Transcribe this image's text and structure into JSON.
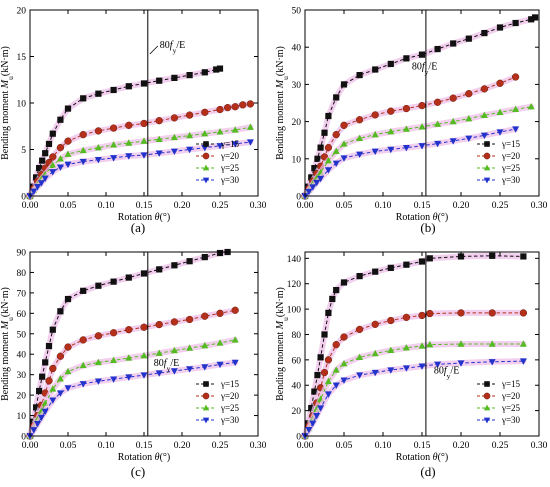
{
  "figure": {
    "ylabel_text": "Bending moment M",
    "ylabel_sub": "u",
    "ylabel_unit": "(kN·m)",
    "xlabel_text": "Rotation ",
    "xlabel_sym": "θ",
    "xlabel_unit": "(°)",
    "annotation_prefix": "80",
    "annotation_f": "f",
    "annotation_sub": "y",
    "annotation_suffix": "/E",
    "legend_prefix": "γ=",
    "colors": {
      "g15": "#111111",
      "g20": "#b5301a",
      "g25": "#55bb22",
      "g30": "#2233cc",
      "band": "#eebfe8"
    },
    "markers": {
      "g15": "square",
      "g20": "circle",
      "g25": "triangle-up",
      "g30": "triangle-down"
    }
  },
  "chart_data": [
    {
      "type": "line",
      "panel_label": "(a)",
      "xlim": [
        0,
        0.3
      ],
      "ylim": [
        0,
        20
      ],
      "xticks": [
        "0.00",
        "0.05",
        "0.10",
        "0.15",
        "0.20",
        "0.25",
        "0.30"
      ],
      "yticks": [
        "0",
        "5",
        "10",
        "15",
        "20"
      ],
      "vline_x": 0.155,
      "annotation_pos": "top, right of vertical line",
      "legend_position": "lower-right",
      "series": [
        {
          "name": "15",
          "key": "g15",
          "x": [
            0,
            0.004,
            0.008,
            0.012,
            0.016,
            0.02,
            0.025,
            0.03,
            0.04,
            0.05,
            0.07,
            0.09,
            0.11,
            0.13,
            0.15,
            0.17,
            0.19,
            0.21,
            0.23,
            0.245,
            0.25
          ],
          "y": [
            0,
            1.0,
            2.0,
            3.0,
            3.8,
            4.6,
            5.6,
            6.7,
            8.2,
            9.4,
            10.5,
            11.0,
            11.4,
            11.8,
            12.1,
            12.4,
            12.7,
            13.0,
            13.3,
            13.6,
            13.7
          ]
        },
        {
          "name": "20",
          "key": "g20",
          "x": [
            0,
            0.005,
            0.01,
            0.015,
            0.02,
            0.025,
            0.03,
            0.04,
            0.05,
            0.07,
            0.09,
            0.11,
            0.13,
            0.15,
            0.17,
            0.19,
            0.21,
            0.23,
            0.25,
            0.26,
            0.27,
            0.28,
            0.29
          ],
          "y": [
            0,
            0.8,
            1.6,
            2.3,
            3.0,
            3.6,
            4.2,
            5.2,
            5.9,
            6.6,
            7.0,
            7.3,
            7.6,
            7.8,
            8.1,
            8.4,
            8.7,
            9.0,
            9.3,
            9.5,
            9.6,
            9.8,
            9.9
          ]
        },
        {
          "name": "25",
          "key": "g25",
          "x": [
            0,
            0.005,
            0.01,
            0.015,
            0.02,
            0.03,
            0.04,
            0.05,
            0.07,
            0.09,
            0.11,
            0.13,
            0.15,
            0.17,
            0.19,
            0.21,
            0.23,
            0.25,
            0.27,
            0.29
          ],
          "y": [
            0,
            0.6,
            1.2,
            1.8,
            2.3,
            3.3,
            4.0,
            4.5,
            4.9,
            5.2,
            5.5,
            5.7,
            5.9,
            6.1,
            6.3,
            6.5,
            6.7,
            6.9,
            7.1,
            7.4
          ]
        },
        {
          "name": "30",
          "key": "g30",
          "x": [
            0,
            0.005,
            0.01,
            0.015,
            0.02,
            0.03,
            0.04,
            0.05,
            0.07,
            0.09,
            0.11,
            0.13,
            0.15,
            0.17,
            0.19,
            0.21,
            0.23,
            0.25,
            0.27,
            0.29
          ],
          "y": [
            0,
            0.5,
            1.0,
            1.4,
            1.9,
            2.6,
            3.1,
            3.4,
            3.7,
            3.9,
            4.1,
            4.3,
            4.4,
            4.6,
            4.8,
            5.0,
            5.2,
            5.4,
            5.6,
            5.8
          ]
        }
      ]
    },
    {
      "type": "line",
      "panel_label": "(b)",
      "xlim": [
        0,
        0.3
      ],
      "ylim": [
        0,
        50
      ],
      "xticks": [
        "0.00",
        "0.05",
        "0.10",
        "0.15",
        "0.20",
        "0.25",
        "0.30"
      ],
      "yticks": [
        "0",
        "10",
        "20",
        "30",
        "40",
        "50"
      ],
      "vline_x": 0.155,
      "annotation_pos": "middle, left of vertical line",
      "legend_position": "lower-right",
      "series": [
        {
          "name": "15",
          "key": "g15",
          "x": [
            0,
            0.004,
            0.008,
            0.012,
            0.016,
            0.02,
            0.025,
            0.03,
            0.04,
            0.05,
            0.07,
            0.09,
            0.11,
            0.13,
            0.15,
            0.17,
            0.19,
            0.21,
            0.23,
            0.25,
            0.27,
            0.29,
            0.295
          ],
          "y": [
            0,
            2.5,
            5.0,
            7.5,
            10,
            13,
            17,
            21.5,
            26.5,
            30,
            32.5,
            34,
            35.5,
            37,
            38,
            39.5,
            41,
            42.3,
            43.8,
            45.3,
            46.5,
            47.5,
            48
          ]
        },
        {
          "name": "20",
          "key": "g20",
          "x": [
            0,
            0.005,
            0.01,
            0.015,
            0.02,
            0.025,
            0.03,
            0.04,
            0.05,
            0.07,
            0.09,
            0.11,
            0.13,
            0.15,
            0.17,
            0.19,
            0.21,
            0.23,
            0.25,
            0.27
          ],
          "y": [
            0,
            2,
            4,
            6,
            8,
            10.5,
            13,
            16.5,
            19,
            20.5,
            21.8,
            22.8,
            23.5,
            24.3,
            25.2,
            26.3,
            27.5,
            28.8,
            30.3,
            32
          ]
        },
        {
          "name": "25",
          "key": "g25",
          "x": [
            0,
            0.005,
            0.01,
            0.015,
            0.02,
            0.03,
            0.04,
            0.05,
            0.07,
            0.09,
            0.11,
            0.13,
            0.15,
            0.17,
            0.19,
            0.21,
            0.23,
            0.25,
            0.27,
            0.29
          ],
          "y": [
            0,
            1.6,
            3.2,
            4.8,
            6.3,
            9.5,
            12,
            14,
            15.5,
            16.5,
            17.3,
            18,
            18.6,
            19.3,
            20,
            20.8,
            21.7,
            22.5,
            23.3,
            24
          ]
        },
        {
          "name": "30",
          "key": "g30",
          "x": [
            0,
            0.005,
            0.01,
            0.015,
            0.02,
            0.03,
            0.04,
            0.05,
            0.07,
            0.09,
            0.11,
            0.13,
            0.15,
            0.17,
            0.19,
            0.21,
            0.23,
            0.25,
            0.27
          ],
          "y": [
            0,
            1.2,
            2.4,
            3.6,
            4.7,
            7,
            8.8,
            10.2,
            11.2,
            12,
            12.5,
            13,
            13.5,
            14.1,
            14.8,
            15.5,
            16.3,
            17.2,
            18
          ]
        }
      ]
    },
    {
      "type": "line",
      "panel_label": "(c)",
      "xlim": [
        0,
        0.3
      ],
      "ylim": [
        0,
        90
      ],
      "xticks": [
        "0.00",
        "0.05",
        "0.10",
        "0.15",
        "0.20",
        "0.25",
        "0.30"
      ],
      "yticks": [
        "0",
        "10",
        "20",
        "30",
        "40",
        "50",
        "60",
        "70",
        "80",
        "90"
      ],
      "vline_x": 0.155,
      "annotation_pos": "lower, right of vertical line",
      "legend_position": "lower-right",
      "series": [
        {
          "name": "15",
          "key": "g15",
          "x": [
            0,
            0.004,
            0.008,
            0.012,
            0.016,
            0.02,
            0.025,
            0.03,
            0.04,
            0.05,
            0.07,
            0.09,
            0.11,
            0.13,
            0.15,
            0.17,
            0.19,
            0.21,
            0.23,
            0.25,
            0.26
          ],
          "y": [
            0,
            7,
            14,
            22,
            29,
            36,
            44,
            52,
            61,
            67,
            71,
            73.5,
            75.5,
            77.5,
            79.5,
            81.5,
            83.5,
            85.5,
            87.5,
            89.5,
            90
          ]
        },
        {
          "name": "20",
          "key": "g20",
          "x": [
            0,
            0.005,
            0.01,
            0.015,
            0.02,
            0.025,
            0.03,
            0.04,
            0.05,
            0.07,
            0.09,
            0.11,
            0.13,
            0.15,
            0.17,
            0.19,
            0.21,
            0.23,
            0.25,
            0.27
          ],
          "y": [
            0,
            5,
            10,
            15,
            21,
            27,
            33,
            39,
            43.5,
            47,
            49,
            50.5,
            52,
            53.2,
            54.5,
            55.8,
            57,
            58.6,
            60,
            61.5
          ]
        },
        {
          "name": "25",
          "key": "g25",
          "x": [
            0,
            0.005,
            0.01,
            0.015,
            0.02,
            0.03,
            0.04,
            0.05,
            0.07,
            0.09,
            0.11,
            0.13,
            0.15,
            0.17,
            0.19,
            0.21,
            0.23,
            0.25,
            0.27
          ],
          "y": [
            0,
            4,
            8,
            12,
            16,
            23,
            28,
            31.5,
            34.5,
            36,
            37,
            38.2,
            39.3,
            40.5,
            41.8,
            43,
            44.2,
            45.5,
            47
          ]
        },
        {
          "name": "30",
          "key": "g30",
          "x": [
            0,
            0.005,
            0.01,
            0.015,
            0.02,
            0.03,
            0.04,
            0.05,
            0.07,
            0.09,
            0.11,
            0.13,
            0.15,
            0.17,
            0.19,
            0.21,
            0.23,
            0.25,
            0.27
          ],
          "y": [
            0,
            3,
            6,
            9,
            12,
            17.5,
            21,
            23.5,
            25.5,
            26.8,
            27.8,
            28.8,
            29.8,
            30.8,
            31.8,
            32.8,
            33.8,
            35,
            36
          ]
        }
      ]
    },
    {
      "type": "line",
      "panel_label": "(d)",
      "xlim": [
        0,
        0.3
      ],
      "ylim": [
        0,
        145
      ],
      "xticks": [
        "0.00",
        "0.05",
        "0.10",
        "0.15",
        "0.20",
        "0.25",
        "0.30"
      ],
      "yticks": [
        "0",
        "20",
        "40",
        "60",
        "80",
        "100",
        "120",
        "140"
      ],
      "vline_x": 0.155,
      "annotation_pos": "lower, right of vertical line",
      "legend_position": "lower-right",
      "series": [
        {
          "name": "15",
          "key": "g15",
          "x": [
            0,
            0.004,
            0.008,
            0.012,
            0.016,
            0.02,
            0.025,
            0.03,
            0.035,
            0.04,
            0.05,
            0.07,
            0.09,
            0.11,
            0.13,
            0.15,
            0.16,
            0.2,
            0.24,
            0.28
          ],
          "y": [
            0,
            10,
            22,
            35,
            48,
            62,
            80,
            97,
            108,
            115,
            121,
            126,
            129.5,
            132.5,
            135,
            137.5,
            140,
            141.5,
            142,
            141.5
          ]
        },
        {
          "name": "20",
          "key": "g20",
          "x": [
            0,
            0.005,
            0.01,
            0.015,
            0.02,
            0.025,
            0.03,
            0.04,
            0.05,
            0.07,
            0.09,
            0.11,
            0.13,
            0.15,
            0.16,
            0.2,
            0.24,
            0.28
          ],
          "y": [
            0,
            8,
            16,
            26,
            38,
            50,
            60,
            72,
            78,
            84,
            88,
            91,
            93.5,
            95,
            96.5,
            97,
            97,
            97
          ]
        },
        {
          "name": "25",
          "key": "g25",
          "x": [
            0,
            0.005,
            0.01,
            0.015,
            0.02,
            0.03,
            0.04,
            0.05,
            0.07,
            0.09,
            0.11,
            0.13,
            0.15,
            0.16,
            0.2,
            0.24,
            0.28
          ],
          "y": [
            0,
            6,
            13,
            21,
            29,
            43,
            52,
            57,
            62,
            65,
            67.5,
            69.5,
            71,
            72,
            72.5,
            72.5,
            72.5
          ]
        },
        {
          "name": "30",
          "key": "g30",
          "x": [
            0,
            0.005,
            0.01,
            0.015,
            0.02,
            0.03,
            0.04,
            0.05,
            0.07,
            0.09,
            0.11,
            0.13,
            0.15,
            0.17,
            0.2,
            0.24,
            0.28
          ],
          "y": [
            0,
            5,
            10,
            16,
            22,
            33,
            40,
            44,
            48,
            50,
            52,
            53.5,
            55,
            56.5,
            57.5,
            58.5,
            59
          ]
        }
      ]
    }
  ]
}
